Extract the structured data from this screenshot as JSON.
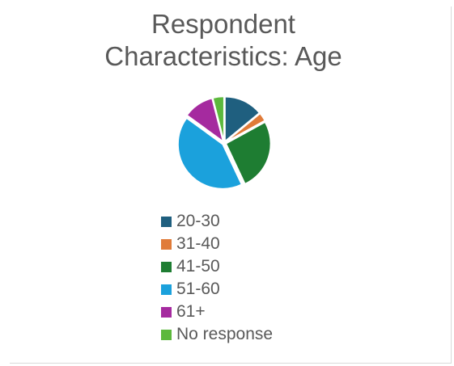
{
  "chart_data": {
    "type": "pie",
    "title_lines": [
      "Respondent",
      "Characteristics: Age"
    ],
    "legend_position": "bottom",
    "slices": [
      {
        "label": "20-30",
        "value": 14,
        "color": "#1f5f7f"
      },
      {
        "label": "31-40",
        "value": 3,
        "color": "#e07b39"
      },
      {
        "label": "41-50",
        "value": 26,
        "color": "#1e7d32"
      },
      {
        "label": "51-60",
        "value": 42,
        "color": "#1ba1dc"
      },
      {
        "label": "61+",
        "value": 11,
        "color": "#a52a9f"
      },
      {
        "label": "No response",
        "value": 4,
        "color": "#5cb83c"
      }
    ]
  }
}
